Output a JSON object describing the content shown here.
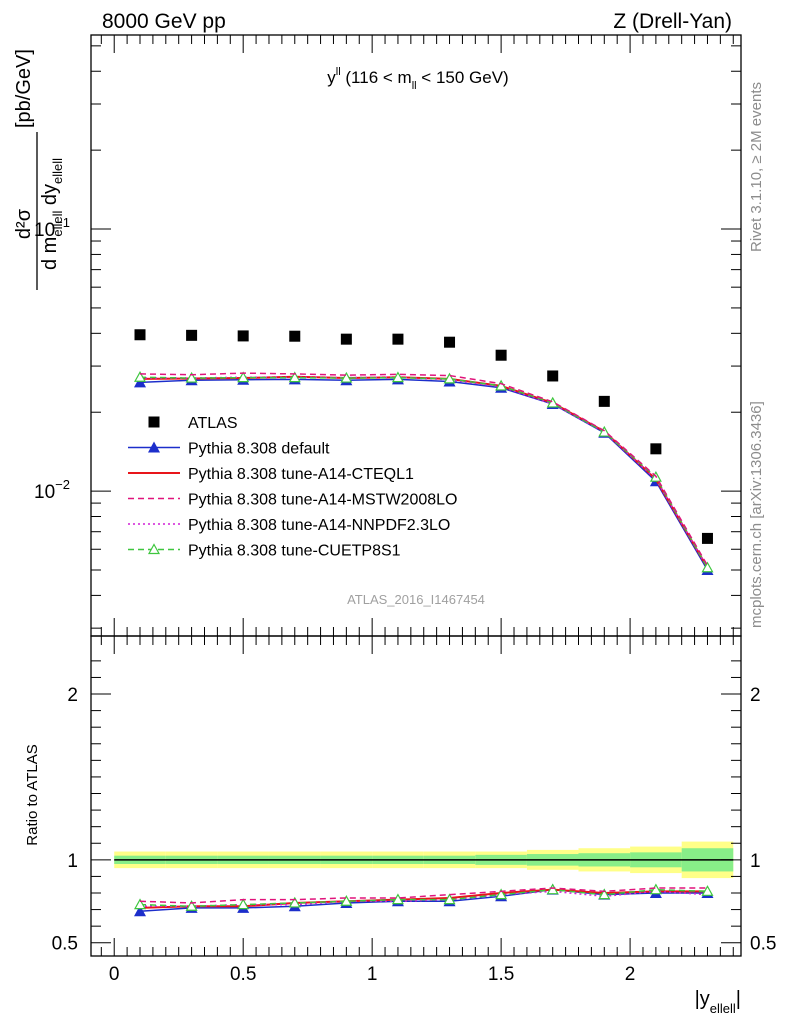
{
  "header": {
    "left": "8000 GeV pp",
    "right": "Z (Drell-Yan)"
  },
  "side_text": {
    "rivet": "Rivet 3.1.10, ≥ 2M events",
    "mcplots": "mcplots.cern.ch [arXiv:1306.3436]"
  },
  "watermark": "ATLAS_2016_I1467454",
  "colors": {
    "data": "#000000",
    "default": "#1c2ecb",
    "cteq": "#e8151a",
    "mstw": "#e0147c",
    "nnpdf": "#d11ed6",
    "cuetp": "#3ec63e",
    "band_outer": "#ffff88",
    "band_inner": "#88ee88"
  },
  "chart_data": [
    {
      "type": "scatter",
      "title": "y^ll (116 < m_ll < 150 GeV)",
      "title_parts": {
        "main": "y",
        "sup": "ll",
        "rest1": " (116 < m",
        "sub": "ll",
        "rest2": " < 150 GeV)"
      },
      "ylabel": "d²σ / d m_ellell dy_ellell [pb/GeV]",
      "ylabel_parts": {
        "num": "d²σ",
        "den_a": "d m",
        "den_sub1": "ellell",
        "den_b": " dy",
        "den_sub2": "ellell",
        "unit": "[pb/GeV]"
      },
      "yscale": "log",
      "ylim": [
        0.0028,
        0.55
      ],
      "xlim": [
        -0.09,
        2.43
      ],
      "ytick_labels": [
        {
          "value": 0.1,
          "base": "10",
          "exp": "−1"
        },
        {
          "value": 0.01,
          "base": "10",
          "exp": "−2"
        }
      ],
      "x": [
        0.1,
        0.3,
        0.5,
        0.7,
        0.9,
        1.1,
        1.3,
        1.5,
        1.7,
        1.9,
        2.1,
        2.3
      ],
      "series": [
        {
          "name": "ATLAS",
          "key": "data",
          "marker": "square",
          "values": [
            0.0395,
            0.0393,
            0.0391,
            0.039,
            0.038,
            0.038,
            0.037,
            0.033,
            0.0275,
            0.022,
            0.0145,
            0.0066
          ]
        },
        {
          "name": "Pythia 8.308 default",
          "key": "default",
          "marker": "triangle",
          "line": "solid",
          "values": [
            0.026,
            0.0265,
            0.0266,
            0.0267,
            0.0265,
            0.0267,
            0.0262,
            0.0248,
            0.0215,
            0.0167,
            0.0109,
            0.005
          ]
        },
        {
          "name": "Pythia 8.308 tune-A14-CTEQL1",
          "key": "cteq",
          "marker": "none",
          "line": "solid",
          "values": [
            0.0268,
            0.0269,
            0.027,
            0.0273,
            0.027,
            0.0272,
            0.0268,
            0.0252,
            0.0217,
            0.0169,
            0.0111,
            0.0051
          ]
        },
        {
          "name": "Pythia 8.308 tune-A14-MSTW2008LO",
          "key": "mstw",
          "marker": "none",
          "line": "dashed",
          "values": [
            0.028,
            0.0278,
            0.0282,
            0.028,
            0.0277,
            0.0279,
            0.0276,
            0.0257,
            0.0219,
            0.017,
            0.0114,
            0.0052
          ]
        },
        {
          "name": "Pythia 8.308 tune-A14-NNPDF2.3LO",
          "key": "nnpdf",
          "marker": "none",
          "line": "dotted",
          "values": [
            0.027,
            0.027,
            0.0272,
            0.0272,
            0.0271,
            0.0272,
            0.0266,
            0.025,
            0.0215,
            0.0168,
            0.0111,
            0.0051
          ]
        },
        {
          "name": "Pythia 8.308 tune-CUETP8S1",
          "key": "cuetp",
          "marker": "open-triangle",
          "line": "dashed",
          "values": [
            0.0272,
            0.027,
            0.0271,
            0.0271,
            0.027,
            0.0271,
            0.0268,
            0.0252,
            0.0217,
            0.0168,
            0.0113,
            0.0051
          ]
        }
      ],
      "legend": "middle-left"
    },
    {
      "type": "line",
      "ylabel": "Ratio to ATLAS",
      "xlabel": "|y_ellell|",
      "xlabel_parts": {
        "main": "|y",
        "sub": "ellell",
        "end": "|"
      },
      "ylim": [
        0.42,
        2.35
      ],
      "xlim": [
        -0.09,
        2.43
      ],
      "yticks": [
        0.5,
        1,
        2
      ],
      "ytick_labels": [
        "0.5",
        "1",
        "2"
      ],
      "xticks": [
        0,
        0.5,
        1,
        1.5,
        2
      ],
      "xtick_labels": [
        "0",
        "0.5",
        "1",
        "1.5",
        "2"
      ],
      "x": [
        0.1,
        0.3,
        0.5,
        0.7,
        0.9,
        1.1,
        1.3,
        1.5,
        1.7,
        1.9,
        2.1,
        2.3
      ],
      "bins": [
        0,
        0.2,
        0.4,
        0.6,
        0.8,
        1.0,
        1.2,
        1.4,
        1.6,
        1.8,
        2.0,
        2.2,
        2.4
      ],
      "band_outer": [
        0.05,
        0.05,
        0.05,
        0.05,
        0.05,
        0.05,
        0.05,
        0.05,
        0.06,
        0.07,
        0.08,
        0.11
      ],
      "band_inner": [
        0.025,
        0.025,
        0.025,
        0.025,
        0.025,
        0.025,
        0.025,
        0.03,
        0.035,
        0.04,
        0.045,
        0.07
      ],
      "series": [
        {
          "name": "Pythia 8.308 default",
          "key": "default",
          "marker": "triangle",
          "line": "solid",
          "values": [
            0.69,
            0.71,
            0.71,
            0.72,
            0.74,
            0.75,
            0.75,
            0.78,
            0.82,
            0.79,
            0.8,
            0.8
          ]
        },
        {
          "name": "Pythia 8.308 tune-A14-CTEQL1",
          "key": "cteq",
          "marker": "none",
          "line": "solid",
          "values": [
            0.71,
            0.72,
            0.72,
            0.74,
            0.75,
            0.76,
            0.77,
            0.8,
            0.82,
            0.8,
            0.81,
            0.81
          ]
        },
        {
          "name": "Pythia 8.308 tune-A14-MSTW2008LO",
          "key": "mstw",
          "marker": "none",
          "line": "dashed",
          "values": [
            0.75,
            0.74,
            0.76,
            0.76,
            0.77,
            0.77,
            0.79,
            0.81,
            0.83,
            0.81,
            0.83,
            0.83
          ]
        },
        {
          "name": "Pythia 8.308 tune-A14-NNPDF2.3LO",
          "key": "nnpdf",
          "marker": "none",
          "line": "dotted",
          "values": [
            0.72,
            0.72,
            0.73,
            0.73,
            0.75,
            0.75,
            0.76,
            0.79,
            0.81,
            0.78,
            0.81,
            0.79
          ]
        },
        {
          "name": "Pythia 8.308 tune-CUETP8S1",
          "key": "cuetp",
          "marker": "open-triangle",
          "line": "dashed",
          "values": [
            0.73,
            0.72,
            0.73,
            0.74,
            0.75,
            0.76,
            0.76,
            0.79,
            0.82,
            0.79,
            0.82,
            0.81
          ]
        }
      ]
    }
  ]
}
